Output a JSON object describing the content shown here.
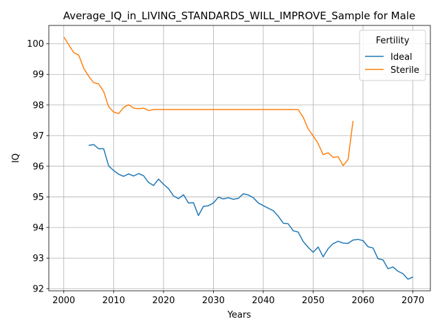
{
  "chart_data": {
    "type": "line",
    "title": "Average_IQ_in_LIVING_STANDARDS_WILL_IMPROVE_Sample for Male",
    "xlabel": "Years",
    "ylabel": "IQ",
    "xlim": [
      1997,
      2073.5
    ],
    "ylim": [
      91.93,
      100.6
    ],
    "x_ticks": [
      2000,
      2010,
      2020,
      2030,
      2040,
      2050,
      2060,
      2070
    ],
    "y_ticks": [
      92,
      93,
      94,
      95,
      96,
      97,
      98,
      99,
      100
    ],
    "grid": true,
    "legend": {
      "title": "Fertility",
      "position": "top-right"
    },
    "series": [
      {
        "name": "Ideal",
        "color": "#1f77b4",
        "x": [
          2005,
          2006,
          2007,
          2008,
          2009,
          2010,
          2011,
          2012,
          2013,
          2014,
          2015,
          2016,
          2017,
          2018,
          2019,
          2020,
          2021,
          2022,
          2023,
          2024,
          2025,
          2026,
          2027,
          2028,
          2029,
          2030,
          2031,
          2032,
          2033,
          2034,
          2035,
          2036,
          2037,
          2038,
          2039,
          2040,
          2041,
          2042,
          2043,
          2044,
          2045,
          2046,
          2047,
          2048,
          2049,
          2050,
          2051,
          2052,
          2053,
          2054,
          2055,
          2056,
          2057,
          2058,
          2059,
          2060,
          2061,
          2062,
          2063,
          2064,
          2065,
          2066,
          2067,
          2068,
          2069,
          2070
        ],
        "values": [
          96.68,
          96.71,
          96.57,
          96.57,
          96.01,
          95.86,
          95.74,
          95.67,
          95.75,
          95.68,
          95.76,
          95.69,
          95.47,
          95.37,
          95.58,
          95.41,
          95.27,
          95.03,
          94.94,
          95.07,
          94.8,
          94.81,
          94.39,
          94.69,
          94.71,
          94.8,
          94.99,
          94.93,
          94.97,
          94.92,
          94.95,
          95.1,
          95.06,
          94.97,
          94.8,
          94.71,
          94.63,
          94.55,
          94.37,
          94.14,
          94.12,
          93.89,
          93.85,
          93.54,
          93.35,
          93.19,
          93.36,
          93.04,
          93.31,
          93.47,
          93.55,
          93.49,
          93.48,
          93.59,
          93.61,
          93.57,
          93.37,
          93.33,
          92.98,
          92.94,
          92.65,
          92.71,
          92.57,
          92.49,
          92.31,
          92.38
        ]
      },
      {
        "name": "Sterile",
        "color": "#ff7f0e",
        "x": [
          2000,
          2001,
          2002,
          2003,
          2004,
          2005,
          2006,
          2007,
          2008,
          2009,
          2010,
          2011,
          2012,
          2013,
          2014,
          2015,
          2016,
          2017,
          2018,
          2019,
          2020,
          2021,
          2022,
          2023,
          2024,
          2025,
          2026,
          2027,
          2028,
          2029,
          2030,
          2031,
          2032,
          2033,
          2034,
          2035,
          2036,
          2037,
          2038,
          2039,
          2040,
          2041,
          2042,
          2043,
          2044,
          2045,
          2046,
          2047,
          2048,
          2049,
          2050,
          2051,
          2052,
          2053,
          2054,
          2055,
          2056,
          2057,
          2058
        ],
        "values": [
          100.22,
          99.97,
          99.71,
          99.63,
          99.2,
          98.94,
          98.73,
          98.69,
          98.44,
          97.94,
          97.77,
          97.72,
          97.92,
          98.01,
          97.9,
          97.88,
          97.9,
          97.82,
          97.85,
          97.85,
          97.85,
          97.85,
          97.85,
          97.85,
          97.85,
          97.85,
          97.85,
          97.85,
          97.85,
          97.85,
          97.85,
          97.85,
          97.85,
          97.85,
          97.85,
          97.85,
          97.85,
          97.85,
          97.85,
          97.85,
          97.85,
          97.85,
          97.85,
          97.85,
          97.85,
          97.85,
          97.85,
          97.85,
          97.6,
          97.22,
          96.99,
          96.74,
          96.38,
          96.44,
          96.29,
          96.31,
          96.02,
          96.22,
          97.48
        ]
      }
    ]
  }
}
